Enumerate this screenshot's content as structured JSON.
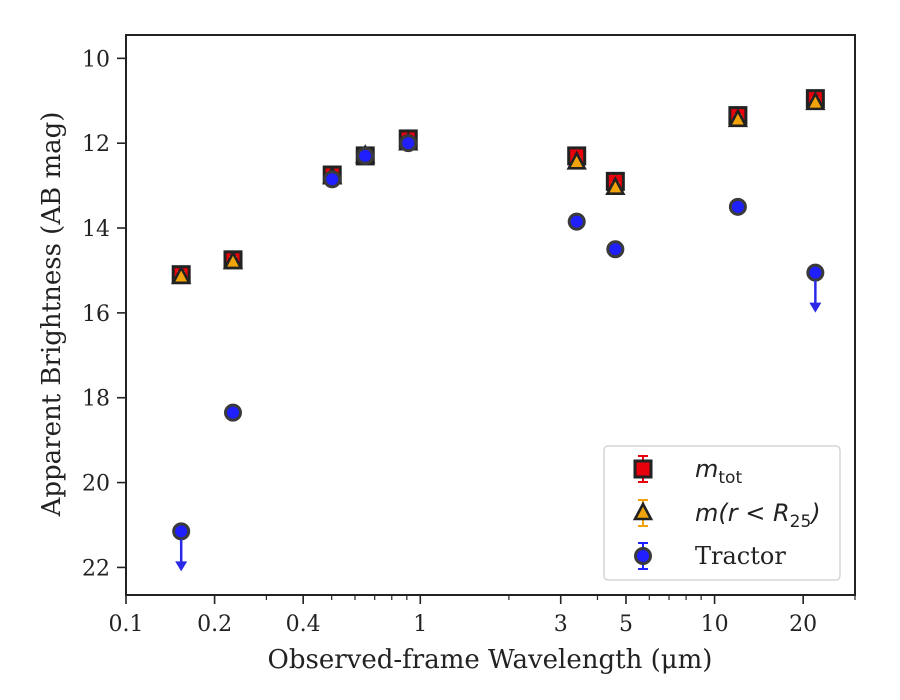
{
  "chart_data": {
    "type": "scatter",
    "title": "",
    "xlabel": "Observed-frame Wavelength (μm)",
    "ylabel": "Apparent Brightness (AB mag)",
    "xscale": "log",
    "xlim": [
      0.1,
      30
    ],
    "ylim": [
      22.65,
      9.45
    ],
    "y_inverted": true,
    "x_ticks": [
      {
        "value": 0.1,
        "label": "0.1"
      },
      {
        "value": 0.2,
        "label": "0.2"
      },
      {
        "value": 0.4,
        "label": "0.4"
      },
      {
        "value": 1,
        "label": "1"
      },
      {
        "value": 3,
        "label": "3"
      },
      {
        "value": 5,
        "label": "5"
      },
      {
        "value": 10,
        "label": "10"
      },
      {
        "value": 20,
        "label": "20"
      }
    ],
    "y_ticks": [
      10,
      12,
      14,
      16,
      18,
      20,
      22
    ],
    "grid": false,
    "legend": {
      "placement": "lower-right",
      "entries": [
        {
          "series": "m_tot",
          "text": "m",
          "sub": "tot",
          "after": ""
        },
        {
          "series": "m_r25",
          "text": "m(r < R",
          "sub": "25",
          "after": ")"
        },
        {
          "series": "tractor",
          "text": "Tractor",
          "sub": "",
          "after": ""
        }
      ]
    },
    "series": [
      {
        "id": "m_tot",
        "marker": "square",
        "color": "#e8000b",
        "edge": "#222222",
        "errcolor": "#e8000b",
        "x": [
          0.154,
          0.231,
          0.502,
          0.65,
          0.91,
          3.4,
          4.6,
          12.0,
          22.0
        ],
        "y": [
          15.1,
          14.75,
          12.75,
          12.3,
          11.9,
          12.3,
          12.9,
          11.35,
          10.95
        ]
      },
      {
        "id": "m_r25",
        "marker": "triangle",
        "color": "#f0a30a",
        "edge": "#222222",
        "errcolor": "#f0a30a",
        "x": [
          0.154,
          0.231,
          0.502,
          0.65,
          0.91,
          3.4,
          4.6,
          12.0,
          22.0
        ],
        "y": [
          15.15,
          14.8,
          12.8,
          12.3,
          12.0,
          12.45,
          13.05,
          11.45,
          11.05
        ]
      },
      {
        "id": "tractor",
        "marker": "circle",
        "color": "#1f1fff",
        "edge": "#3a3a3a",
        "errcolor": "#1f1fff",
        "x": [
          0.154,
          0.231,
          0.502,
          0.65,
          0.91,
          3.4,
          4.6,
          12.0,
          22.0
        ],
        "y": [
          21.15,
          18.35,
          12.85,
          12.3,
          12.0,
          13.85,
          14.5,
          13.5,
          15.05
        ],
        "upper_limits": [
          true,
          false,
          false,
          false,
          false,
          false,
          false,
          false,
          true
        ]
      }
    ]
  }
}
